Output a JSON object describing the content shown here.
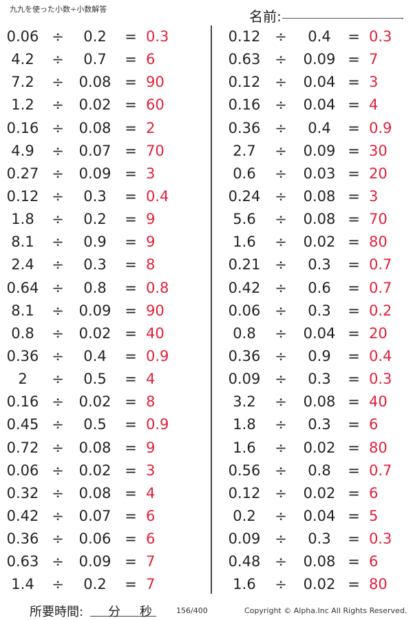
{
  "header": {
    "title": "九九を使った小数÷小数解答",
    "name_label": "名前:"
  },
  "symbols": {
    "div": "÷",
    "eq": "="
  },
  "left": [
    {
      "a": "0.06",
      "b": "0.2",
      "ans": "0.3"
    },
    {
      "a": "4.2",
      "b": "0.7",
      "ans": "6"
    },
    {
      "a": "7.2",
      "b": "0.08",
      "ans": "90"
    },
    {
      "a": "1.2",
      "b": "0.02",
      "ans": "60"
    },
    {
      "a": "0.16",
      "b": "0.08",
      "ans": "2"
    },
    {
      "a": "4.9",
      "b": "0.07",
      "ans": "70"
    },
    {
      "a": "0.27",
      "b": "0.09",
      "ans": "3"
    },
    {
      "a": "0.12",
      "b": "0.3",
      "ans": "0.4"
    },
    {
      "a": "1.8",
      "b": "0.2",
      "ans": "9"
    },
    {
      "a": "8.1",
      "b": "0.9",
      "ans": "9"
    },
    {
      "a": "2.4",
      "b": "0.3",
      "ans": "8"
    },
    {
      "a": "0.64",
      "b": "0.8",
      "ans": "0.8"
    },
    {
      "a": "8.1",
      "b": "0.09",
      "ans": "90"
    },
    {
      "a": "0.8",
      "b": "0.02",
      "ans": "40"
    },
    {
      "a": "0.36",
      "b": "0.4",
      "ans": "0.9"
    },
    {
      "a": "2",
      "b": "0.5",
      "ans": "4"
    },
    {
      "a": "0.16",
      "b": "0.02",
      "ans": "8"
    },
    {
      "a": "0.45",
      "b": "0.5",
      "ans": "0.9"
    },
    {
      "a": "0.72",
      "b": "0.08",
      "ans": "9"
    },
    {
      "a": "0.06",
      "b": "0.02",
      "ans": "3"
    },
    {
      "a": "0.32",
      "b": "0.08",
      "ans": "4"
    },
    {
      "a": "0.42",
      "b": "0.07",
      "ans": "6"
    },
    {
      "a": "0.36",
      "b": "0.06",
      "ans": "6"
    },
    {
      "a": "0.63",
      "b": "0.09",
      "ans": "7"
    },
    {
      "a": "1.4",
      "b": "0.2",
      "ans": "7"
    }
  ],
  "right": [
    {
      "a": "0.12",
      "b": "0.4",
      "ans": "0.3"
    },
    {
      "a": "0.63",
      "b": "0.09",
      "ans": "7"
    },
    {
      "a": "0.12",
      "b": "0.04",
      "ans": "3"
    },
    {
      "a": "0.16",
      "b": "0.04",
      "ans": "4"
    },
    {
      "a": "0.36",
      "b": "0.4",
      "ans": "0.9"
    },
    {
      "a": "2.7",
      "b": "0.09",
      "ans": "30"
    },
    {
      "a": "0.6",
      "b": "0.03",
      "ans": "20"
    },
    {
      "a": "0.24",
      "b": "0.08",
      "ans": "3"
    },
    {
      "a": "5.6",
      "b": "0.08",
      "ans": "70"
    },
    {
      "a": "1.6",
      "b": "0.02",
      "ans": "80"
    },
    {
      "a": "0.21",
      "b": "0.3",
      "ans": "0.7"
    },
    {
      "a": "0.42",
      "b": "0.6",
      "ans": "0.7"
    },
    {
      "a": "0.06",
      "b": "0.3",
      "ans": "0.2"
    },
    {
      "a": "0.8",
      "b": "0.04",
      "ans": "20"
    },
    {
      "a": "0.36",
      "b": "0.9",
      "ans": "0.4"
    },
    {
      "a": "0.09",
      "b": "0.3",
      "ans": "0.3"
    },
    {
      "a": "3.2",
      "b": "0.08",
      "ans": "40"
    },
    {
      "a": "1.8",
      "b": "0.3",
      "ans": "6"
    },
    {
      "a": "1.6",
      "b": "0.02",
      "ans": "80"
    },
    {
      "a": "0.56",
      "b": "0.8",
      "ans": "0.7"
    },
    {
      "a": "0.12",
      "b": "0.02",
      "ans": "6"
    },
    {
      "a": "0.2",
      "b": "0.04",
      "ans": "5"
    },
    {
      "a": "0.09",
      "b": "0.3",
      "ans": "0.3"
    },
    {
      "a": "0.48",
      "b": "0.08",
      "ans": "6"
    },
    {
      "a": "1.6",
      "b": "0.02",
      "ans": "80"
    }
  ],
  "footer": {
    "time_label": "所要時間:",
    "minutes_label": "分",
    "seconds_label": "秒",
    "page": "156/400",
    "copyright": "Copyright © Alpha.Inc All Rights Reserved."
  }
}
